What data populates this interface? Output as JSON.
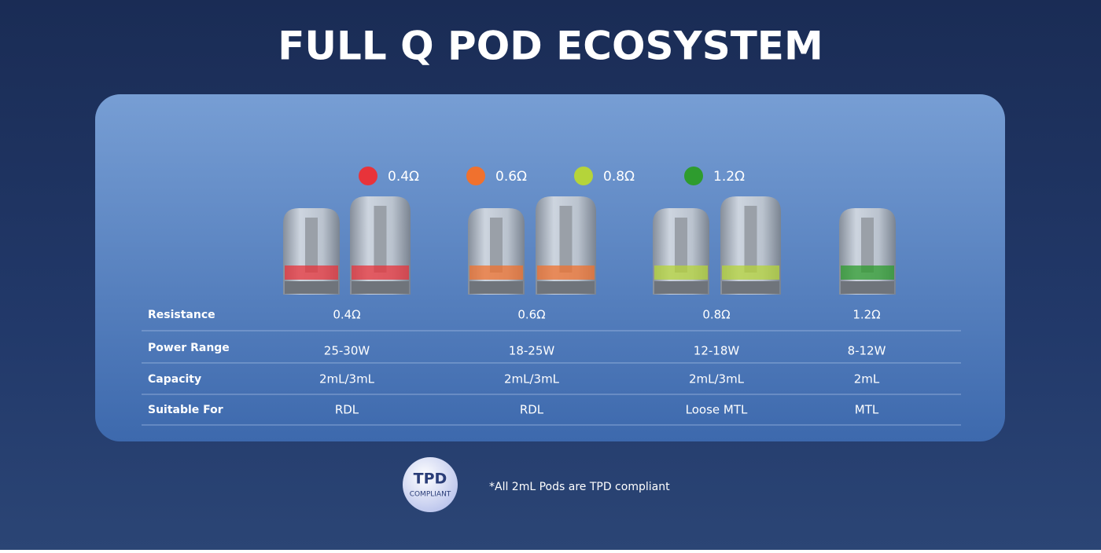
{
  "title": "FULL Q POD ECOSYSTEM",
  "legend": [
    {
      "label": "0.4Ω",
      "color": "#e8333a"
    },
    {
      "label": "0.6Ω",
      "color": "#f0712e"
    },
    {
      "label": "0.8Ω",
      "color": "#b5d43a"
    },
    {
      "label": "1.2Ω",
      "color": "#2e9c2e"
    }
  ],
  "table": {
    "rows": [
      [
        "Resistance",
        "0.4Ω",
        "0.6Ω",
        "0.8Ω",
        "1.2Ω"
      ],
      [
        "Power Range",
        "25-30W",
        "18-25W",
        "12-18W",
        "8-12W"
      ],
      [
        "Capacity",
        "2mL/3mL",
        "2mL/3mL",
        "2mL/3mL",
        "2mL"
      ],
      [
        "Suitable For",
        "RDL",
        "RDL",
        "Loose MTL",
        "MTL"
      ]
    ]
  },
  "badge": {
    "line1": "TPD",
    "line2": "COMPLIANT"
  },
  "footnote": "*All 2mL Pods are TPD compliant"
}
